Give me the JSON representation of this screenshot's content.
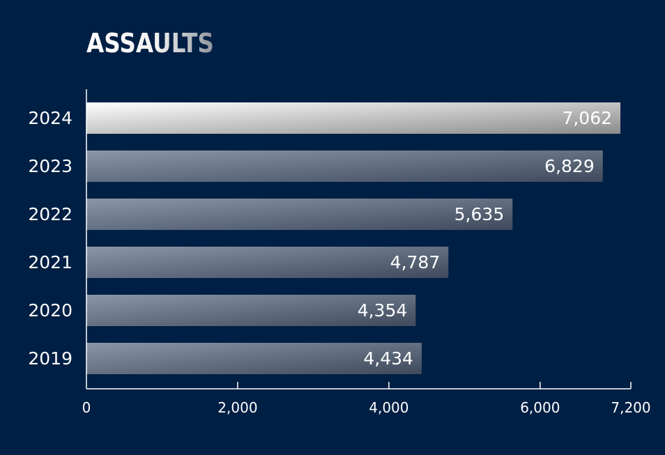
{
  "chart_data": {
    "type": "bar",
    "orientation": "horizontal",
    "title": "ASSAULTS",
    "categories": [
      "2024",
      "2023",
      "2022",
      "2021",
      "2020",
      "2019"
    ],
    "values": [
      7062,
      6829,
      5635,
      4787,
      4354,
      4434
    ],
    "value_labels": [
      "7,062",
      "6,829",
      "5,635",
      "4,787",
      "4,354",
      "4,434"
    ],
    "xlim": [
      0,
      7200
    ],
    "x_ticks": [
      0,
      2000,
      4000,
      6000,
      7200
    ],
    "x_tick_labels": [
      "0",
      "2,000",
      "4,000",
      "6,000",
      "7,200"
    ],
    "grid": false,
    "highlight_category": "2024"
  },
  "colors": {
    "background": "#001f44",
    "axis": "#ffffff",
    "bar_start": "#8a97a8",
    "bar_end": "#3e4a5c",
    "highlight_start": "#ffffff",
    "highlight_end": "#8a8a8a"
  }
}
